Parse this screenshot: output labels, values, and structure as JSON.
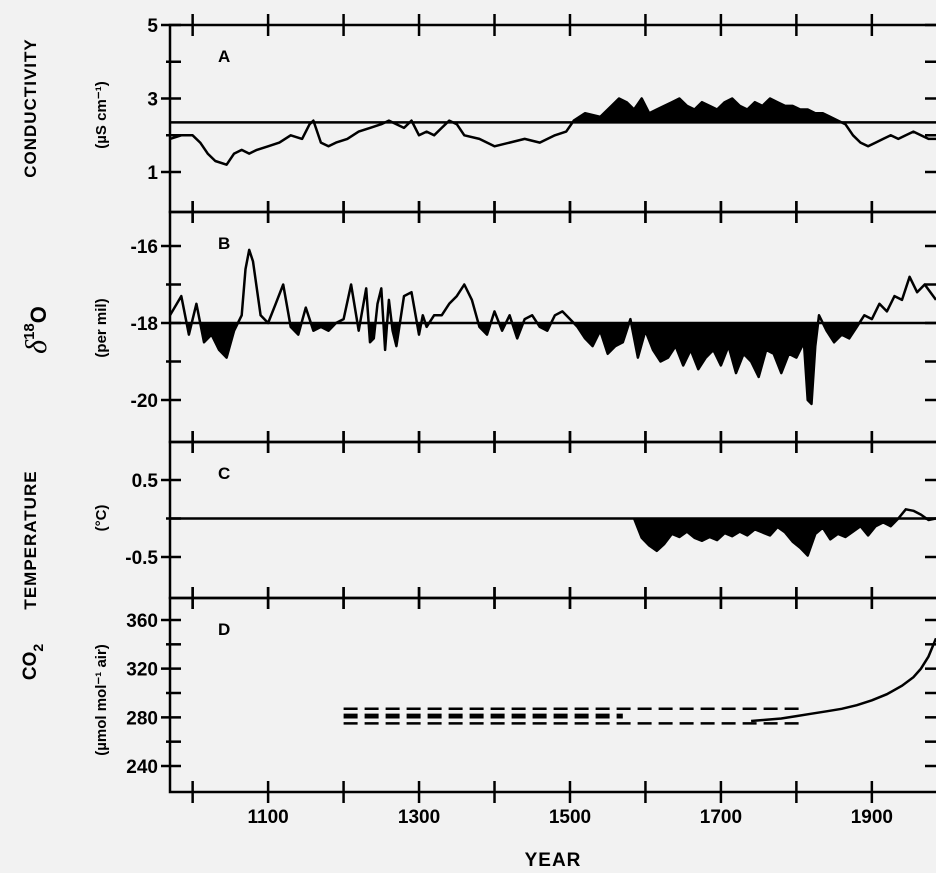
{
  "figure": {
    "xlabel": "YEAR",
    "x_ticks": [
      1100,
      1300,
      1500,
      1700,
      1900
    ],
    "xlim": [
      970,
      1985
    ]
  },
  "chart_data": [
    {
      "type": "line",
      "panel": "A",
      "title": "A",
      "ylabel": "CONDUCTIVITY",
      "unit": "(µS cm⁻¹)",
      "ylim": [
        0,
        5
      ],
      "y_ticks": [
        1,
        3,
        5
      ],
      "reference_line": 2.35,
      "shading": "above",
      "x": [
        970,
        985,
        1000,
        1010,
        1020,
        1030,
        1045,
        1055,
        1065,
        1075,
        1085,
        1100,
        1115,
        1130,
        1145,
        1155,
        1160,
        1170,
        1180,
        1190,
        1205,
        1220,
        1235,
        1250,
        1260,
        1270,
        1280,
        1290,
        1300,
        1310,
        1320,
        1330,
        1340,
        1350,
        1360,
        1380,
        1400,
        1420,
        1440,
        1460,
        1480,
        1495,
        1505,
        1520,
        1540,
        1555,
        1565,
        1575,
        1585,
        1595,
        1605,
        1615,
        1625,
        1635,
        1645,
        1655,
        1665,
        1675,
        1685,
        1695,
        1705,
        1715,
        1725,
        1735,
        1745,
        1755,
        1765,
        1775,
        1785,
        1795,
        1805,
        1815,
        1825,
        1835,
        1845,
        1855,
        1865,
        1875,
        1885,
        1895,
        1905,
        1915,
        1925,
        1935,
        1945,
        1955,
        1965,
        1975,
        1985
      ],
      "values": [
        1.9,
        2.0,
        2.0,
        1.8,
        1.5,
        1.3,
        1.2,
        1.5,
        1.6,
        1.5,
        1.6,
        1.7,
        1.8,
        2.0,
        1.9,
        2.3,
        2.4,
        1.8,
        1.7,
        1.8,
        1.9,
        2.1,
        2.2,
        2.3,
        2.4,
        2.3,
        2.2,
        2.4,
        2.0,
        2.1,
        2.0,
        2.2,
        2.4,
        2.3,
        2.0,
        1.9,
        1.7,
        1.8,
        1.9,
        1.8,
        2.0,
        2.1,
        2.4,
        2.6,
        2.5,
        2.8,
        3.0,
        2.9,
        2.7,
        3.0,
        2.6,
        2.7,
        2.8,
        2.9,
        3.0,
        2.8,
        2.7,
        2.9,
        2.8,
        2.7,
        2.9,
        3.0,
        2.8,
        2.7,
        2.9,
        2.8,
        3.0,
        2.9,
        2.8,
        2.8,
        2.7,
        2.7,
        2.6,
        2.6,
        2.5,
        2.4,
        2.3,
        2.0,
        1.8,
        1.7,
        1.8,
        1.9,
        2.0,
        1.9,
        2.0,
        2.1,
        2.0,
        1.9,
        1.9
      ]
    },
    {
      "type": "line",
      "panel": "B",
      "title": "B",
      "ylabel": "δ18O",
      "unit": "(per mil)",
      "ylim": [
        -21,
        -15
      ],
      "y_ticks": [
        -16,
        -18,
        -20
      ],
      "reference_line": -18,
      "shading": "below",
      "x": [
        970,
        985,
        995,
        1005,
        1015,
        1025,
        1035,
        1045,
        1055,
        1065,
        1070,
        1075,
        1080,
        1090,
        1100,
        1110,
        1120,
        1130,
        1140,
        1150,
        1160,
        1170,
        1180,
        1190,
        1200,
        1210,
        1220,
        1230,
        1235,
        1240,
        1245,
        1250,
        1255,
        1260,
        1265,
        1270,
        1280,
        1290,
        1300,
        1305,
        1310,
        1320,
        1330,
        1340,
        1350,
        1360,
        1370,
        1380,
        1390,
        1400,
        1410,
        1420,
        1430,
        1440,
        1450,
        1460,
        1470,
        1480,
        1490,
        1500,
        1510,
        1520,
        1530,
        1540,
        1550,
        1560,
        1570,
        1580,
        1590,
        1600,
        1610,
        1620,
        1630,
        1640,
        1650,
        1660,
        1670,
        1680,
        1690,
        1700,
        1710,
        1720,
        1730,
        1740,
        1750,
        1760,
        1770,
        1780,
        1790,
        1800,
        1810,
        1815,
        1820,
        1825,
        1830,
        1840,
        1850,
        1860,
        1870,
        1880,
        1890,
        1900,
        1910,
        1920,
        1930,
        1940,
        1950,
        1960,
        1970,
        1985
      ],
      "values": [
        -17.8,
        -17.3,
        -18.3,
        -17.5,
        -18.5,
        -18.3,
        -18.7,
        -18.9,
        -18.2,
        -17.8,
        -16.6,
        -16.1,
        -16.4,
        -17.8,
        -18.0,
        -17.5,
        -17.0,
        -18.1,
        -18.3,
        -17.6,
        -18.2,
        -18.1,
        -18.2,
        -18.0,
        -17.9,
        -17.0,
        -18.2,
        -17.1,
        -18.5,
        -18.4,
        -17.5,
        -17.1,
        -18.7,
        -17.4,
        -18.2,
        -18.6,
        -17.3,
        -17.2,
        -18.3,
        -17.8,
        -18.1,
        -17.8,
        -17.8,
        -17.5,
        -17.3,
        -17.0,
        -17.4,
        -18.1,
        -18.3,
        -17.7,
        -18.2,
        -17.8,
        -18.4,
        -17.9,
        -17.8,
        -18.1,
        -18.2,
        -17.8,
        -17.7,
        -17.9,
        -18.1,
        -18.4,
        -18.6,
        -18.2,
        -18.8,
        -18.6,
        -18.5,
        -17.9,
        -18.9,
        -18.2,
        -18.7,
        -19.0,
        -18.9,
        -18.6,
        -19.1,
        -18.7,
        -19.2,
        -18.9,
        -18.7,
        -19.1,
        -18.6,
        -19.3,
        -18.8,
        -19.0,
        -19.4,
        -18.7,
        -18.8,
        -19.3,
        -18.8,
        -18.9,
        -18.5,
        -20.0,
        -20.1,
        -18.6,
        -17.8,
        -18.2,
        -18.5,
        -18.3,
        -18.4,
        -18.1,
        -17.8,
        -17.9,
        -17.5,
        -17.7,
        -17.3,
        -17.4,
        -16.8,
        -17.2,
        -17.0,
        -17.4
      ]
    },
    {
      "type": "line",
      "panel": "C",
      "title": "C",
      "ylabel": "TEMPERATURE",
      "unit": "(°C)",
      "ylim": [
        -0.9,
        1.0
      ],
      "y_ticks": [
        0.5,
        -0.5
      ],
      "reference_line": 0,
      "shading": "below",
      "x": [
        1585,
        1595,
        1605,
        1615,
        1625,
        1635,
        1645,
        1655,
        1665,
        1675,
        1685,
        1695,
        1705,
        1715,
        1725,
        1735,
        1745,
        1755,
        1765,
        1775,
        1785,
        1795,
        1805,
        1815,
        1825,
        1835,
        1845,
        1855,
        1865,
        1875,
        1885,
        1895,
        1905,
        1915,
        1925,
        1935,
        1945,
        1955,
        1965,
        1975,
        1985
      ],
      "values": [
        0.0,
        -0.25,
        -0.35,
        -0.42,
        -0.33,
        -0.2,
        -0.24,
        -0.17,
        -0.25,
        -0.29,
        -0.24,
        -0.28,
        -0.19,
        -0.23,
        -0.17,
        -0.22,
        -0.14,
        -0.18,
        -0.22,
        -0.11,
        -0.18,
        -0.3,
        -0.38,
        -0.48,
        -0.2,
        -0.12,
        -0.27,
        -0.2,
        -0.24,
        -0.17,
        -0.1,
        -0.22,
        -0.1,
        -0.05,
        -0.1,
        0.0,
        0.12,
        0.1,
        0.05,
        -0.02,
        0.0
      ]
    },
    {
      "type": "line",
      "panel": "D",
      "title": "D",
      "ylabel": "CO2",
      "unit": "(µmol mol⁻¹ air)",
      "ylim": [
        220,
        380
      ],
      "y_ticks": [
        240,
        280,
        320,
        360
      ],
      "series": [
        {
          "style": "dashed",
          "x": [
            1200,
            1805
          ],
          "values": [
            287,
            287
          ]
        },
        {
          "style": "dashed",
          "x": [
            1200,
            1570
          ],
          "values": [
            282,
            282
          ]
        },
        {
          "style": "dashed",
          "x": [
            1200,
            1570
          ],
          "values": [
            280,
            280
          ]
        },
        {
          "style": "dashed",
          "x": [
            1200,
            1805
          ],
          "values": [
            275,
            275
          ]
        },
        {
          "style": "solid",
          "x": [
            1740,
            1760,
            1780,
            1800,
            1820,
            1840,
            1860,
            1880,
            1900,
            1920,
            1940,
            1955,
            1965,
            1975,
            1985
          ],
          "values": [
            277,
            278,
            279,
            281,
            283,
            285,
            287,
            290,
            294,
            299,
            306,
            313,
            320,
            330,
            345
          ]
        }
      ]
    }
  ]
}
